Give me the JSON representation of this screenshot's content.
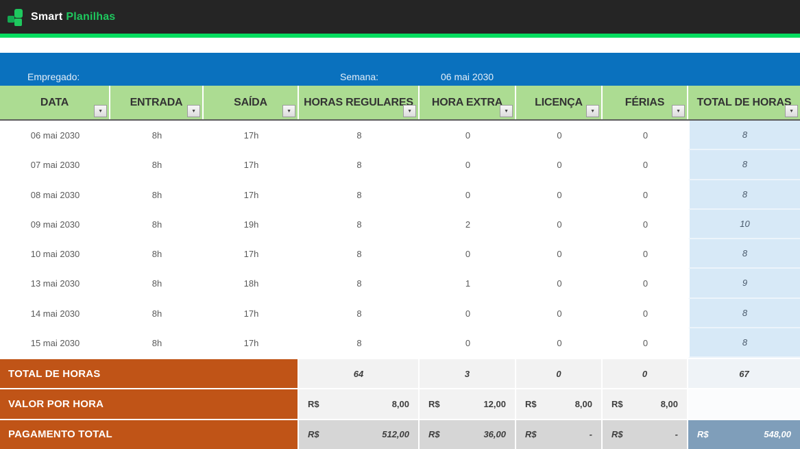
{
  "brand": {
    "name_bold": "Smart",
    "name_light": "Planilhas"
  },
  "colors": {
    "topbar": "#252525",
    "accent_green": "#1ec85e",
    "strip_green": "#05dd5f",
    "blue_bar": "#0a71be",
    "header_green": "#acdc92",
    "orange_label": "#c05417",
    "total_col_blue": "#d7e9f7",
    "grand_total_blue": "#7f9eba",
    "summary_light": "#f2f2f2",
    "summary_gray": "#d6d6d6"
  },
  "info_bar": {
    "employee_label": "Empregado:",
    "week_label": "Semana:",
    "week_value": "06 mai 2030"
  },
  "table": {
    "columns": [
      {
        "label": "DATA"
      },
      {
        "label": "ENTRADA"
      },
      {
        "label": "SAÍDA"
      },
      {
        "label": "HORAS REGULARES"
      },
      {
        "label": "HORA EXTRA"
      },
      {
        "label": "LICENÇA"
      },
      {
        "label": "FÉRIAS"
      },
      {
        "label": "TOTAL DE HORAS"
      }
    ],
    "rows": [
      {
        "date": "06 mai 2030",
        "entry": "8h",
        "exit": "17h",
        "regular": "8",
        "extra": "0",
        "leave": "0",
        "vacation": "0",
        "total": "8"
      },
      {
        "date": "07 mai 2030",
        "entry": "8h",
        "exit": "17h",
        "regular": "8",
        "extra": "0",
        "leave": "0",
        "vacation": "0",
        "total": "8"
      },
      {
        "date": "08 mai 2030",
        "entry": "8h",
        "exit": "17h",
        "regular": "8",
        "extra": "0",
        "leave": "0",
        "vacation": "0",
        "total": "8"
      },
      {
        "date": "09 mai 2030",
        "entry": "8h",
        "exit": "19h",
        "regular": "8",
        "extra": "2",
        "leave": "0",
        "vacation": "0",
        "total": "10"
      },
      {
        "date": "10 mai 2030",
        "entry": "8h",
        "exit": "17h",
        "regular": "8",
        "extra": "0",
        "leave": "0",
        "vacation": "0",
        "total": "8"
      },
      {
        "date": "13 mai 2030",
        "entry": "8h",
        "exit": "18h",
        "regular": "8",
        "extra": "1",
        "leave": "0",
        "vacation": "0",
        "total": "9"
      },
      {
        "date": "14 mai 2030",
        "entry": "8h",
        "exit": "17h",
        "regular": "8",
        "extra": "0",
        "leave": "0",
        "vacation": "0",
        "total": "8"
      },
      {
        "date": "15 mai 2030",
        "entry": "8h",
        "exit": "17h",
        "regular": "8",
        "extra": "0",
        "leave": "0",
        "vacation": "0",
        "total": "8"
      }
    ],
    "summary": {
      "total_hours": {
        "label": "TOTAL DE HORAS",
        "regular": "64",
        "extra": "3",
        "leave": "0",
        "vacation": "0",
        "total": "67"
      },
      "hourly_rate": {
        "label": "VALOR POR HORA",
        "currency": "R$",
        "regular": "8,00",
        "extra": "12,00",
        "leave": "8,00",
        "vacation": "8,00"
      },
      "total_payment": {
        "label": "PAGAMENTO TOTAL",
        "currency": "R$",
        "regular": "512,00",
        "extra": "36,00",
        "leave": "-",
        "vacation": "-",
        "total": "548,00"
      }
    }
  }
}
